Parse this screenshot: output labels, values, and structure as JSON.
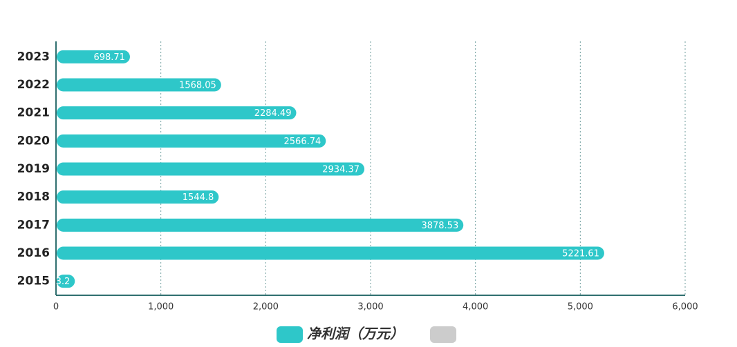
{
  "chart_data": {
    "type": "hbar",
    "categories": [
      "2023",
      "2022",
      "2021",
      "2020",
      "2019",
      "2018",
      "2017",
      "2016",
      "2015"
    ],
    "series": [
      {
        "name": "净利润（万元）",
        "color": "#2ec7c9",
        "values": [
          698.71,
          1568.05,
          2284.49,
          2566.74,
          2934.37,
          1544.8,
          3878.53,
          5221.61,
          173.2
        ]
      }
    ],
    "xlim": [
      0,
      6000
    ],
    "xticks": [
      0,
      {
        "value": 1000,
        "label": "1,000"
      },
      {
        "value": 2000,
        "label": "2,000"
      },
      {
        "value": 3000,
        "label": "3,000"
      },
      {
        "value": 4000,
        "label": "4,000"
      },
      {
        "value": 5000,
        "label": "5,000"
      },
      {
        "value": 6000,
        "label": "6,000"
      }
    ],
    "grid": true
  }
}
